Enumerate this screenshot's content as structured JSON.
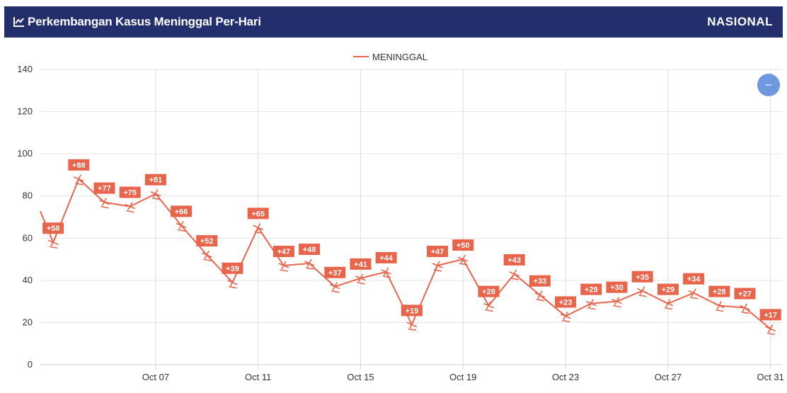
{
  "header": {
    "title": "Perkembangan Kasus Meninggal Per-Hari",
    "scope": "NASIONAL",
    "icon": "line-chart-icon"
  },
  "fab": {
    "icon": "minus-icon",
    "symbol": "–",
    "color": "#6f98e0"
  },
  "colors": {
    "header_bg": "#232f6d",
    "series": "#e8654c"
  },
  "chart_data": {
    "type": "line",
    "legend": "top-center",
    "grid": true,
    "ylim": [
      0,
      140
    ],
    "yticks": [
      0,
      20,
      40,
      60,
      80,
      100,
      120,
      140
    ],
    "xticks": [
      "Oct 07",
      "Oct 11",
      "Oct 15",
      "Oct 19",
      "Oct 23",
      "Oct 27",
      "Oct 31"
    ],
    "x": [
      "Oct 03",
      "Oct 04",
      "Oct 05",
      "Oct 06",
      "Oct 07",
      "Oct 08",
      "Oct 09",
      "Oct 10",
      "Oct 11",
      "Oct 12",
      "Oct 13",
      "Oct 14",
      "Oct 15",
      "Oct 16",
      "Oct 17",
      "Oct 18",
      "Oct 19",
      "Oct 20",
      "Oct 21",
      "Oct 22",
      "Oct 23",
      "Oct 24",
      "Oct 25",
      "Oct 26",
      "Oct 27",
      "Oct 28",
      "Oct 29",
      "Oct 30",
      "Oct 31"
    ],
    "series": [
      {
        "name": "MENINGGAL",
        "color": "#e8654c",
        "values": [
          58,
          88,
          77,
          75,
          81,
          66,
          52,
          39,
          65,
          47,
          48,
          37,
          41,
          44,
          19,
          47,
          50,
          28,
          43,
          33,
          23,
          29,
          30,
          35,
          29,
          34,
          28,
          27,
          17
        ],
        "labels": [
          "+58",
          "+88",
          "+77",
          "+75",
          "+81",
          "+66",
          "+52",
          "+39",
          "+65",
          "+47",
          "+48",
          "+37",
          "+41",
          "+44",
          "+19",
          "+47",
          "+50",
          "+28",
          "+43",
          "+33",
          "+23",
          "+29",
          "+30",
          "+35",
          "+29",
          "+34",
          "+28",
          "+27",
          "+17"
        ]
      }
    ]
  }
}
